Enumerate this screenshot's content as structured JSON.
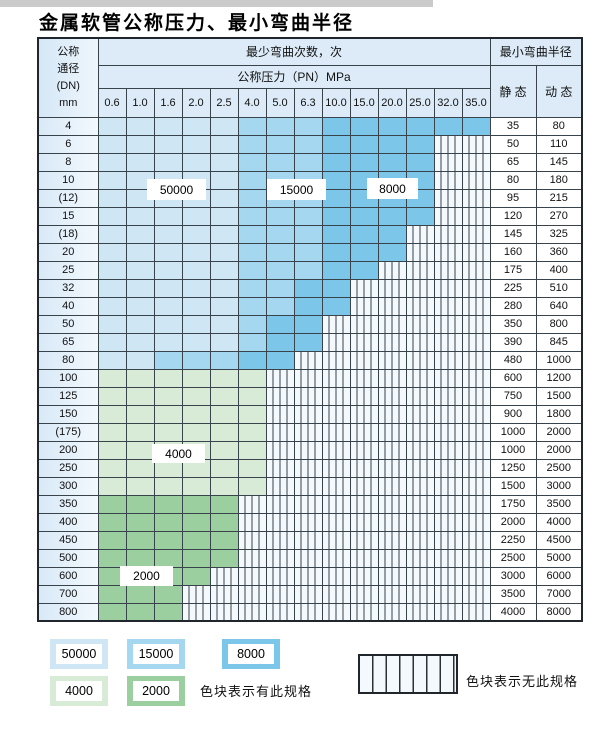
{
  "title": "金属软管公称压力、最小弯曲半径",
  "table": {
    "dn_header": [
      "公称",
      "通径",
      "(DN)",
      "mm"
    ],
    "bend_cycles_header": "最少弯曲次数，次",
    "pressure_header": "公称压力（PN）MPa",
    "pressures": [
      "0.6",
      "1.0",
      "1.6",
      "2.0",
      "2.5",
      "4.0",
      "5.0",
      "6.3",
      "10.0",
      "15.0",
      "20.0",
      "25.0",
      "32.0",
      "35.0"
    ],
    "min_radius_header": "最小弯曲半径",
    "static_header": "静 态",
    "dynamic_header": "动 态",
    "rows": [
      {
        "dn": "4",
        "static": "35",
        "dynamic": "80",
        "cells": [
          "b1",
          "b1",
          "b1",
          "b1",
          "b1",
          "b2",
          "b2",
          "b2",
          "b3",
          "b3",
          "b3",
          "b3",
          "b3",
          "b3"
        ]
      },
      {
        "dn": "6",
        "static": "50",
        "dynamic": "110",
        "cells": [
          "b1",
          "b1",
          "b1",
          "b1",
          "b1",
          "b2",
          "b2",
          "b2",
          "b3",
          "b3",
          "b3",
          "b3",
          "none",
          "none"
        ]
      },
      {
        "dn": "8",
        "static": "65",
        "dynamic": "145",
        "cells": [
          "b1",
          "b1",
          "b1",
          "b1",
          "b1",
          "b2",
          "b2",
          "b2",
          "b3",
          "b3",
          "b3",
          "b3",
          "none",
          "none"
        ]
      },
      {
        "dn": "10",
        "static": "80",
        "dynamic": "180",
        "cells": [
          "b1",
          "b1",
          "b1",
          "b1",
          "b1",
          "b2",
          "b2",
          "b2",
          "b3",
          "b3",
          "b3",
          "b3",
          "none",
          "none"
        ]
      },
      {
        "dn": "(12)",
        "static": "95",
        "dynamic": "215",
        "cells": [
          "b1",
          "b1",
          "b1",
          "b1",
          "b1",
          "b2",
          "b2",
          "b2",
          "b3",
          "b3",
          "b3",
          "b3",
          "none",
          "none"
        ]
      },
      {
        "dn": "15",
        "static": "120",
        "dynamic": "270",
        "cells": [
          "b1",
          "b1",
          "b1",
          "b1",
          "b1",
          "b2",
          "b2",
          "b2",
          "b3",
          "b3",
          "b3",
          "b3",
          "none",
          "none"
        ]
      },
      {
        "dn": "(18)",
        "static": "145",
        "dynamic": "325",
        "cells": [
          "b1",
          "b1",
          "b1",
          "b1",
          "b1",
          "b2",
          "b2",
          "b2",
          "b3",
          "b3",
          "b3",
          "none",
          "none",
          "none"
        ]
      },
      {
        "dn": "20",
        "static": "160",
        "dynamic": "360",
        "cells": [
          "b1",
          "b1",
          "b1",
          "b1",
          "b1",
          "b2",
          "b2",
          "b2",
          "b3",
          "b3",
          "b3",
          "none",
          "none",
          "none"
        ]
      },
      {
        "dn": "25",
        "static": "175",
        "dynamic": "400",
        "cells": [
          "b1",
          "b1",
          "b1",
          "b1",
          "b1",
          "b2",
          "b2",
          "b2",
          "b3",
          "b3",
          "none",
          "none",
          "none",
          "none"
        ]
      },
      {
        "dn": "32",
        "static": "225",
        "dynamic": "510",
        "cells": [
          "b1",
          "b1",
          "b1",
          "b1",
          "b1",
          "b2",
          "b2",
          "b3",
          "b3",
          "none",
          "none",
          "none",
          "none",
          "none"
        ]
      },
      {
        "dn": "40",
        "static": "280",
        "dynamic": "640",
        "cells": [
          "b1",
          "b1",
          "b1",
          "b1",
          "b1",
          "b2",
          "b2",
          "b3",
          "b3",
          "none",
          "none",
          "none",
          "none",
          "none"
        ]
      },
      {
        "dn": "50",
        "static": "350",
        "dynamic": "800",
        "cells": [
          "b1",
          "b1",
          "b1",
          "b1",
          "b1",
          "b2",
          "b3",
          "b3",
          "none",
          "none",
          "none",
          "none",
          "none",
          "none"
        ]
      },
      {
        "dn": "65",
        "static": "390",
        "dynamic": "845",
        "cells": [
          "b1",
          "b1",
          "b1",
          "b1",
          "b1",
          "b2",
          "b3",
          "b3",
          "none",
          "none",
          "none",
          "none",
          "none",
          "none"
        ]
      },
      {
        "dn": "80",
        "static": "480",
        "dynamic": "1000",
        "cells": [
          "b1",
          "b1",
          "b2",
          "b2",
          "b2",
          "b3",
          "b3",
          "none",
          "none",
          "none",
          "none",
          "none",
          "none",
          "none"
        ]
      },
      {
        "dn": "100",
        "static": "600",
        "dynamic": "1200",
        "cells": [
          "g1",
          "g1",
          "g1",
          "g1",
          "g1",
          "g1",
          "none",
          "none",
          "none",
          "none",
          "none",
          "none",
          "none",
          "none"
        ]
      },
      {
        "dn": "125",
        "static": "750",
        "dynamic": "1500",
        "cells": [
          "g1",
          "g1",
          "g1",
          "g1",
          "g1",
          "g1",
          "none",
          "none",
          "none",
          "none",
          "none",
          "none",
          "none",
          "none"
        ]
      },
      {
        "dn": "150",
        "static": "900",
        "dynamic": "1800",
        "cells": [
          "g1",
          "g1",
          "g1",
          "g1",
          "g1",
          "g1",
          "none",
          "none",
          "none",
          "none",
          "none",
          "none",
          "none",
          "none"
        ]
      },
      {
        "dn": "(175)",
        "static": "1000",
        "dynamic": "2000",
        "cells": [
          "g1",
          "g1",
          "g1",
          "g1",
          "g1",
          "g1",
          "none",
          "none",
          "none",
          "none",
          "none",
          "none",
          "none",
          "none"
        ]
      },
      {
        "dn": "200",
        "static": "1000",
        "dynamic": "2000",
        "cells": [
          "g1",
          "g1",
          "g1",
          "g1",
          "g1",
          "g1",
          "none",
          "none",
          "none",
          "none",
          "none",
          "none",
          "none",
          "none"
        ]
      },
      {
        "dn": "250",
        "static": "1250",
        "dynamic": "2500",
        "cells": [
          "g1",
          "g1",
          "g1",
          "g1",
          "g1",
          "g1",
          "none",
          "none",
          "none",
          "none",
          "none",
          "none",
          "none",
          "none"
        ]
      },
      {
        "dn": "300",
        "static": "1500",
        "dynamic": "3000",
        "cells": [
          "g1",
          "g1",
          "g1",
          "g1",
          "g1",
          "g1",
          "none",
          "none",
          "none",
          "none",
          "none",
          "none",
          "none",
          "none"
        ]
      },
      {
        "dn": "350",
        "static": "1750",
        "dynamic": "3500",
        "cells": [
          "g2",
          "g2",
          "g2",
          "g2",
          "g2",
          "none",
          "none",
          "none",
          "none",
          "none",
          "none",
          "none",
          "none",
          "none"
        ]
      },
      {
        "dn": "400",
        "static": "2000",
        "dynamic": "4000",
        "cells": [
          "g2",
          "g2",
          "g2",
          "g2",
          "g2",
          "none",
          "none",
          "none",
          "none",
          "none",
          "none",
          "none",
          "none",
          "none"
        ]
      },
      {
        "dn": "450",
        "static": "2250",
        "dynamic": "4500",
        "cells": [
          "g2",
          "g2",
          "g2",
          "g2",
          "g2",
          "none",
          "none",
          "none",
          "none",
          "none",
          "none",
          "none",
          "none",
          "none"
        ]
      },
      {
        "dn": "500",
        "static": "2500",
        "dynamic": "5000",
        "cells": [
          "g2",
          "g2",
          "g2",
          "g2",
          "g2",
          "none",
          "none",
          "none",
          "none",
          "none",
          "none",
          "none",
          "none",
          "none"
        ]
      },
      {
        "dn": "600",
        "static": "3000",
        "dynamic": "6000",
        "cells": [
          "g2",
          "g2",
          "g2",
          "g2",
          "none",
          "none",
          "none",
          "none",
          "none",
          "none",
          "none",
          "none",
          "none",
          "none"
        ]
      },
      {
        "dn": "700",
        "static": "3500",
        "dynamic": "7000",
        "cells": [
          "g2",
          "g2",
          "g2",
          "none",
          "none",
          "none",
          "none",
          "none",
          "none",
          "none",
          "none",
          "none",
          "none",
          "none"
        ]
      },
      {
        "dn": "800",
        "static": "4000",
        "dynamic": "8000",
        "cells": [
          "g2",
          "g2",
          "g2",
          "none",
          "none",
          "none",
          "none",
          "none",
          "none",
          "none",
          "none",
          "none",
          "none",
          "none"
        ]
      }
    ]
  },
  "region_labels": {
    "l50000": "50000",
    "l15000": "15000",
    "l8000": "8000",
    "l4000": "4000",
    "l2000": "2000"
  },
  "legend": {
    "swatches": [
      {
        "label": "50000",
        "key": "b1"
      },
      {
        "label": "15000",
        "key": "b2"
      },
      {
        "label": "8000",
        "key": "b3"
      },
      {
        "label": "4000",
        "key": "g1"
      },
      {
        "label": "2000",
        "key": "g2"
      }
    ],
    "has_spec_text": "色块表示有此规格",
    "no_spec_text": "色块表示无此规格"
  },
  "colors": {
    "pale_blue_50000": "#cfe6f5",
    "medium_blue_15000": "#a6d7f1",
    "dark_blue_8000": "#7cc6e9",
    "pale_green_4000": "#d7ebd7",
    "medium_green_2000": "#9ccfa0",
    "header_bg": "#dcebf7",
    "grid_line": "#39434b",
    "hatch_bg": "#f4f9fd"
  }
}
